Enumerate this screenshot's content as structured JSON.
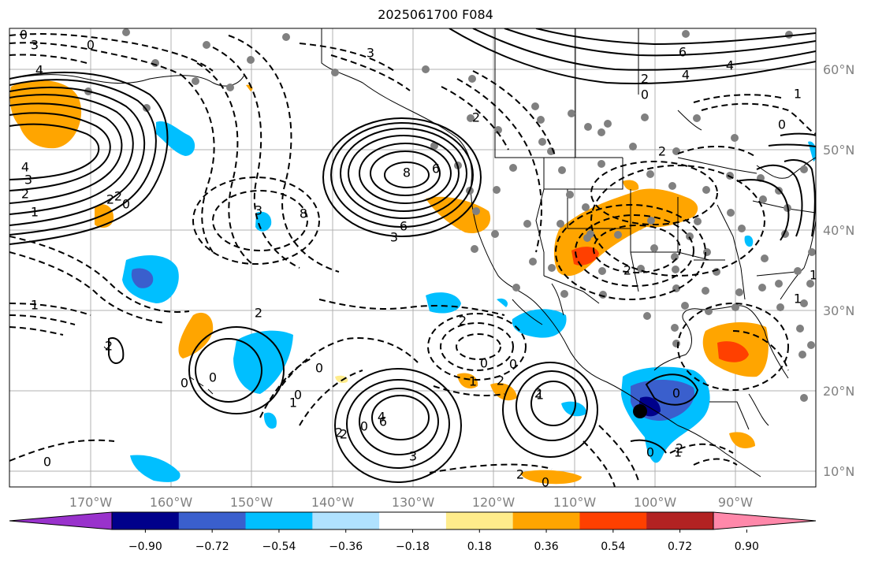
{
  "title": "2025061700 F084",
  "lon_labels": [
    "170°W",
    "160°W",
    "150°W",
    "140°W",
    "130°W",
    "120°W",
    "110°W",
    "100°W",
    "90°W"
  ],
  "lat_labels": [
    "60°N",
    "50°N",
    "40°N",
    "30°N",
    "20°N",
    "10°N"
  ],
  "colorbar": {
    "ticks": [
      "−0.90",
      "−0.72",
      "−0.54",
      "−0.36",
      "−0.18",
      "0.18",
      "0.36",
      "0.54",
      "0.72",
      "0.90"
    ],
    "colors": [
      "#9932cc",
      "#00008b",
      "#3a5fcd",
      "#00bfff",
      "#b0e2ff",
      "#ffffff",
      "#ffec8b",
      "#ffa500",
      "#ff4000",
      "#b22222",
      "#ff88aa"
    ]
  },
  "contour_labels": [
    "0",
    "3",
    "4",
    "0",
    "3",
    "4",
    "6",
    "8",
    "6",
    "4",
    "3",
    "2",
    "1",
    "0",
    "2",
    "4",
    "2",
    "0",
    "1",
    "2",
    "3",
    "8",
    "6",
    "3",
    "2",
    "0",
    "2",
    "2",
    "0",
    "1",
    "2",
    "2",
    "0",
    "6",
    "4",
    "3",
    "2",
    "0",
    "1",
    "0",
    "2",
    "0",
    "0",
    "0",
    "2",
    "0",
    "2",
    "1",
    "1",
    "0",
    "1",
    "0",
    "2",
    "1",
    "2",
    "2",
    "0",
    "1"
  ]
}
